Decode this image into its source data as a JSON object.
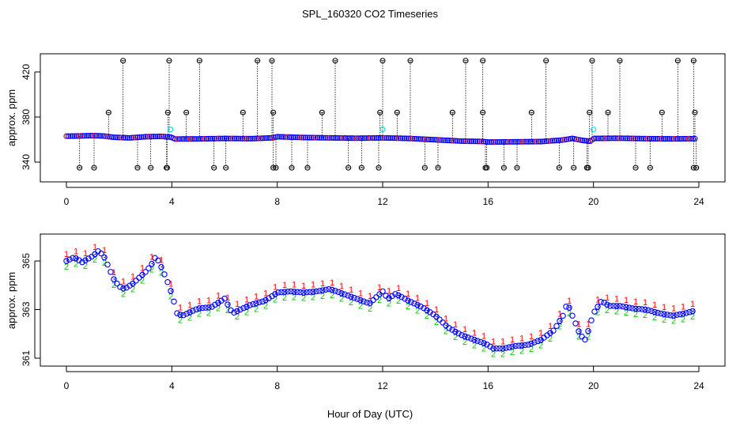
{
  "figure": {
    "title": "SPL_160320  CO2 Timeseries",
    "xlabel": "Hour of Day (UTC)"
  },
  "colors": {
    "blue": "#0000ff",
    "red": "#ff0000",
    "green": "#00cc00",
    "cyan": "#00ffff",
    "black": "#000000"
  },
  "chart_data": [
    {
      "type": "scatter",
      "title": "",
      "xlabel": "",
      "ylabel": "approx. ppm",
      "xlim": [
        0,
        24
      ],
      "ylim": [
        333,
        433
      ],
      "xticks": [
        "0",
        "4",
        "8",
        "12",
        "16",
        "20",
        "24"
      ],
      "yticks": [
        "340",
        "380",
        "420"
      ],
      "baseline": [
        [
          0.0,
          363.0
        ],
        [
          0.5,
          363.2
        ],
        [
          1.0,
          363.5
        ],
        [
          1.4,
          363.2
        ],
        [
          1.8,
          362.0
        ],
        [
          2.4,
          361.5
        ],
        [
          3.0,
          362.5
        ],
        [
          3.6,
          362.8
        ],
        [
          4.0,
          362.0
        ],
        [
          4.1,
          360.5
        ],
        [
          5.0,
          360.6
        ],
        [
          6.0,
          361.0
        ],
        [
          7.0,
          360.8
        ],
        [
          7.8,
          361.5
        ],
        [
          8.0,
          362.5
        ],
        [
          9.0,
          361.8
        ],
        [
          10.0,
          361.5
        ],
        [
          11.0,
          361.2
        ],
        [
          12.0,
          361.5
        ],
        [
          13.0,
          361.0
        ],
        [
          14.0,
          359.8
        ],
        [
          15.0,
          358.6
        ],
        [
          15.8,
          358.3
        ],
        [
          16.0,
          357.8
        ],
        [
          17.0,
          358.0
        ],
        [
          18.0,
          358.2
        ],
        [
          18.8,
          359.5
        ],
        [
          19.2,
          361.0
        ],
        [
          19.6,
          359.2
        ],
        [
          19.9,
          358.5
        ],
        [
          20.0,
          361.0
        ],
        [
          21.0,
          361.2
        ],
        [
          22.0,
          360.8
        ],
        [
          23.0,
          360.6
        ],
        [
          23.8,
          360.8
        ]
      ],
      "high_outliers": [
        2.15,
        3.9,
        5.05,
        7.25,
        7.8,
        10.2,
        12.0,
        13.05,
        15.15,
        15.8,
        18.2,
        19.95,
        21.0,
        23.2,
        23.8
      ],
      "mid_outliers": [
        1.6,
        3.85,
        4.55,
        6.7,
        7.85,
        9.7,
        11.9,
        12.55,
        14.65,
        15.8,
        17.65,
        19.85,
        20.55,
        22.6,
        23.85
      ],
      "mid_outlier_value": 384,
      "low_outliers": [
        0.5,
        1.05,
        2.7,
        3.2,
        3.8,
        3.82,
        5.6,
        6.05,
        7.85,
        7.95,
        8.55,
        9.15,
        10.7,
        11.2,
        11.85,
        13.6,
        14.1,
        15.9,
        15.95,
        16.6,
        17.1,
        18.7,
        19.25,
        19.75,
        19.8,
        21.6,
        22.15,
        23.8,
        23.9
      ],
      "cyan_points": [
        [
          3.95,
          369
        ],
        [
          12.0,
          369
        ],
        [
          20.0,
          369
        ]
      ],
      "high_value": 430,
      "low_value": 335
    },
    {
      "type": "scatter",
      "title": "",
      "xlabel": "Hour of Day (UTC)",
      "ylabel": "approx. ppm",
      "xlim": [
        0,
        24
      ],
      "ylim": [
        360.5,
        365.8
      ],
      "xticks": [
        "0",
        "4",
        "8",
        "12",
        "16",
        "20",
        "24"
      ],
      "yticks": [
        "361",
        "363",
        "365"
      ],
      "series": [
        {
          "marker": "1",
          "color": "#ff0000",
          "offset": 0.15,
          "points": [
            [
              0.0,
              365.15
            ],
            [
              0.3,
              365.3
            ],
            [
              0.6,
              365.1
            ],
            [
              1.0,
              365.35
            ],
            [
              1.2,
              365.55
            ],
            [
              1.4,
              365.4
            ],
            [
              1.6,
              364.9
            ],
            [
              1.8,
              364.4
            ],
            [
              2.0,
              364.1
            ],
            [
              2.2,
              364.0
            ],
            [
              2.5,
              364.2
            ],
            [
              2.8,
              364.5
            ],
            [
              3.0,
              364.7
            ],
            [
              3.2,
              364.95
            ],
            [
              3.4,
              365.35
            ],
            [
              3.6,
              364.9
            ],
            [
              3.8,
              364.4
            ],
            [
              4.0,
              363.8
            ],
            [
              4.2,
              363.0
            ],
            [
              4.4,
              362.9
            ],
            [
              5.0,
              363.2
            ],
            [
              5.5,
              363.25
            ],
            [
              6.0,
              363.6
            ],
            [
              6.3,
              363.0
            ],
            [
              7.0,
              363.35
            ],
            [
              7.5,
              363.5
            ],
            [
              7.8,
              363.7
            ],
            [
              8.0,
              363.85
            ],
            [
              8.5,
              363.9
            ],
            [
              9.0,
              363.85
            ],
            [
              9.5,
              363.9
            ],
            [
              10.0,
              364.0
            ],
            [
              10.5,
              363.8
            ],
            [
              11.0,
              363.6
            ],
            [
              11.5,
              363.4
            ],
            [
              12.0,
              363.9
            ],
            [
              12.2,
              363.6
            ],
            [
              12.5,
              363.8
            ],
            [
              13.0,
              363.5
            ],
            [
              13.5,
              363.25
            ],
            [
              14.0,
              362.9
            ],
            [
              14.5,
              362.4
            ],
            [
              15.0,
              362.1
            ],
            [
              15.5,
              361.9
            ],
            [
              15.9,
              361.75
            ],
            [
              16.2,
              361.55
            ],
            [
              16.6,
              361.55
            ],
            [
              17.0,
              361.65
            ],
            [
              17.5,
              361.7
            ],
            [
              18.0,
              361.9
            ],
            [
              18.5,
              362.3
            ],
            [
              18.9,
              363.0
            ],
            [
              19.0,
              363.45
            ],
            [
              19.2,
              362.9
            ],
            [
              19.5,
              362.1
            ],
            [
              19.7,
              361.9
            ],
            [
              20.0,
              363.0
            ],
            [
              20.3,
              363.5
            ],
            [
              20.6,
              363.3
            ],
            [
              21.0,
              363.3
            ],
            [
              21.5,
              363.2
            ],
            [
              22.0,
              363.15
            ],
            [
              22.5,
              363.0
            ],
            [
              23.0,
              362.9
            ],
            [
              23.5,
              363.0
            ],
            [
              23.8,
              363.1
            ]
          ]
        },
        {
          "marker": "3",
          "color": "#0000ff",
          "offset": 0.0,
          "points": "same"
        },
        {
          "marker": "2",
          "color": "#00cc00",
          "offset": -0.22,
          "points": "same"
        }
      ]
    }
  ]
}
